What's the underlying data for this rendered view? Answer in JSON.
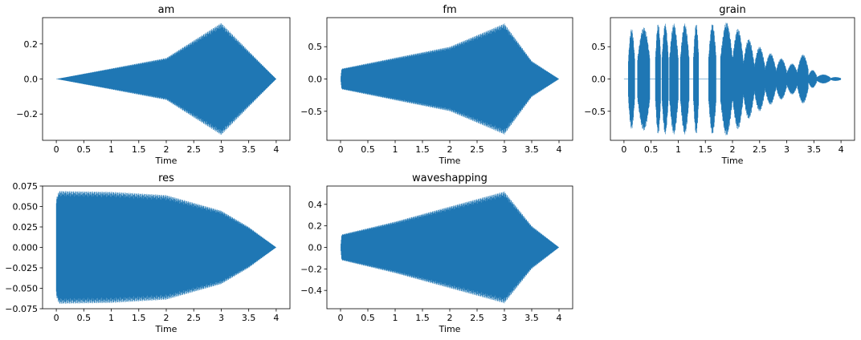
{
  "colors": {
    "series": "#1f77b4",
    "axes": "#000000",
    "background": "#ffffff"
  },
  "chart_data": [
    {
      "type": "waveform",
      "title": "am",
      "xlabel": "Time",
      "xlim": [
        -0.25,
        4.25
      ],
      "ylim": [
        -0.35,
        0.35
      ],
      "xticks": [
        0,
        0.5,
        1,
        1.5,
        2,
        2.5,
        3,
        3.5,
        4
      ],
      "xtick_labels": [
        "0",
        "0.5",
        "1",
        "1.5",
        "2",
        "2.5",
        "3",
        "3.5",
        "4"
      ],
      "yticks": [
        -0.2,
        0,
        0.2
      ],
      "ytick_labels": [
        "−0.2",
        "0.0",
        "0.2"
      ],
      "envelope": {
        "t": [
          0,
          2,
          3,
          4
        ],
        "amp": [
          0,
          0.12,
          0.32,
          0
        ]
      }
    },
    {
      "type": "waveform",
      "title": "fm",
      "xlabel": "Time",
      "xlim": [
        -0.25,
        4.25
      ],
      "ylim": [
        -0.95,
        0.95
      ],
      "xticks": [
        0,
        0.5,
        1,
        1.5,
        2,
        2.5,
        3,
        3.5,
        4
      ],
      "xtick_labels": [
        "0",
        "0.5",
        "1",
        "1.5",
        "2",
        "2.5",
        "3",
        "3.5",
        "4"
      ],
      "yticks": [
        -0.5,
        0,
        0.5
      ],
      "ytick_labels": [
        "−0.5",
        "0.0",
        "0.5"
      ],
      "envelope": {
        "t": [
          0,
          0.02,
          1,
          2,
          3,
          3.5,
          4
        ],
        "amp": [
          0,
          0.16,
          0.33,
          0.5,
          0.86,
          0.28,
          0
        ]
      }
    },
    {
      "type": "waveform",
      "title": "grain",
      "xlabel": "Time",
      "xlim": [
        -0.25,
        4.25
      ],
      "ylim": [
        -0.95,
        0.95
      ],
      "xticks": [
        0,
        0.5,
        1,
        1.5,
        2,
        2.5,
        3,
        3.5,
        4
      ],
      "xtick_labels": [
        "0",
        "0.5",
        "1",
        "1.5",
        "2",
        "2.5",
        "3",
        "3.5",
        "4"
      ],
      "yticks": [
        -0.5,
        0,
        0.5
      ],
      "ytick_labels": [
        "−0.5",
        "0.0",
        "0.5"
      ],
      "grains": [
        {
          "t0": 0.08,
          "t1": 0.2,
          "amp": 0.78
        },
        {
          "t0": 0.25,
          "t1": 0.48,
          "amp": 0.8
        },
        {
          "t0": 0.58,
          "t1": 0.68,
          "amp": 0.86
        },
        {
          "t0": 0.7,
          "t1": 0.82,
          "amp": 0.86
        },
        {
          "t0": 0.84,
          "t1": 1.0,
          "amp": 0.86
        },
        {
          "t0": 1.04,
          "t1": 1.2,
          "amp": 0.86
        },
        {
          "t0": 1.28,
          "t1": 1.38,
          "amp": 0.86
        },
        {
          "t0": 1.56,
          "t1": 1.7,
          "amp": 0.86
        },
        {
          "t0": 1.78,
          "t1": 2.0,
          "amp": 0.88
        },
        {
          "t0": 2.0,
          "t1": 2.2,
          "amp": 0.78
        },
        {
          "t0": 2.2,
          "t1": 2.4,
          "amp": 0.62
        },
        {
          "t0": 2.4,
          "t1": 2.6,
          "amp": 0.5
        },
        {
          "t0": 2.6,
          "t1": 2.8,
          "amp": 0.4
        },
        {
          "t0": 2.8,
          "t1": 3.0,
          "amp": 0.32
        },
        {
          "t0": 3.0,
          "t1": 3.2,
          "amp": 0.24
        },
        {
          "t0": 3.2,
          "t1": 3.4,
          "amp": 0.38
        },
        {
          "t0": 3.4,
          "t1": 3.55,
          "amp": 0.14
        },
        {
          "t0": 3.55,
          "t1": 3.8,
          "amp": 0.07
        },
        {
          "t0": 3.8,
          "t1": 4.0,
          "amp": 0.03
        }
      ]
    },
    {
      "type": "waveform",
      "title": "res",
      "xlabel": "Time",
      "xlim": [
        -0.25,
        4.25
      ],
      "ylim": [
        -0.075,
        0.075
      ],
      "xticks": [
        0,
        0.5,
        1,
        1.5,
        2,
        2.5,
        3,
        3.5,
        4
      ],
      "xtick_labels": [
        "0",
        "0.5",
        "1",
        "1.5",
        "2",
        "2.5",
        "3",
        "3.5",
        "4"
      ],
      "yticks": [
        -0.075,
        -0.05,
        -0.025,
        0,
        0.025,
        0.05,
        0.075
      ],
      "ytick_labels": [
        "−0.075",
        "−0.050",
        "−0.025",
        "0.000",
        "0.025",
        "0.050",
        "0.075"
      ],
      "envelope": {
        "t": [
          0,
          0.05,
          1,
          2,
          3,
          3.5,
          4
        ],
        "amp": [
          0.06,
          0.069,
          0.068,
          0.064,
          0.045,
          0.025,
          0
        ]
      }
    },
    {
      "type": "waveform",
      "title": "waveshapping",
      "xlabel": "Time",
      "xlim": [
        -0.25,
        4.25
      ],
      "ylim": [
        -0.57,
        0.57
      ],
      "xticks": [
        0,
        0.5,
        1,
        1.5,
        2,
        2.5,
        3,
        3.5,
        4
      ],
      "xtick_labels": [
        "0",
        "0.5",
        "1",
        "1.5",
        "2",
        "2.5",
        "3",
        "3.5",
        "4"
      ],
      "yticks": [
        -0.4,
        -0.2,
        0,
        0.2,
        0.4
      ],
      "ytick_labels": [
        "−0.4",
        "−0.2",
        "0.0",
        "0.2",
        "0.4"
      ],
      "envelope": {
        "t": [
          0,
          0.02,
          1,
          2,
          3,
          3.5,
          4
        ],
        "amp": [
          0,
          0.12,
          0.24,
          0.38,
          0.52,
          0.2,
          0
        ]
      }
    }
  ]
}
